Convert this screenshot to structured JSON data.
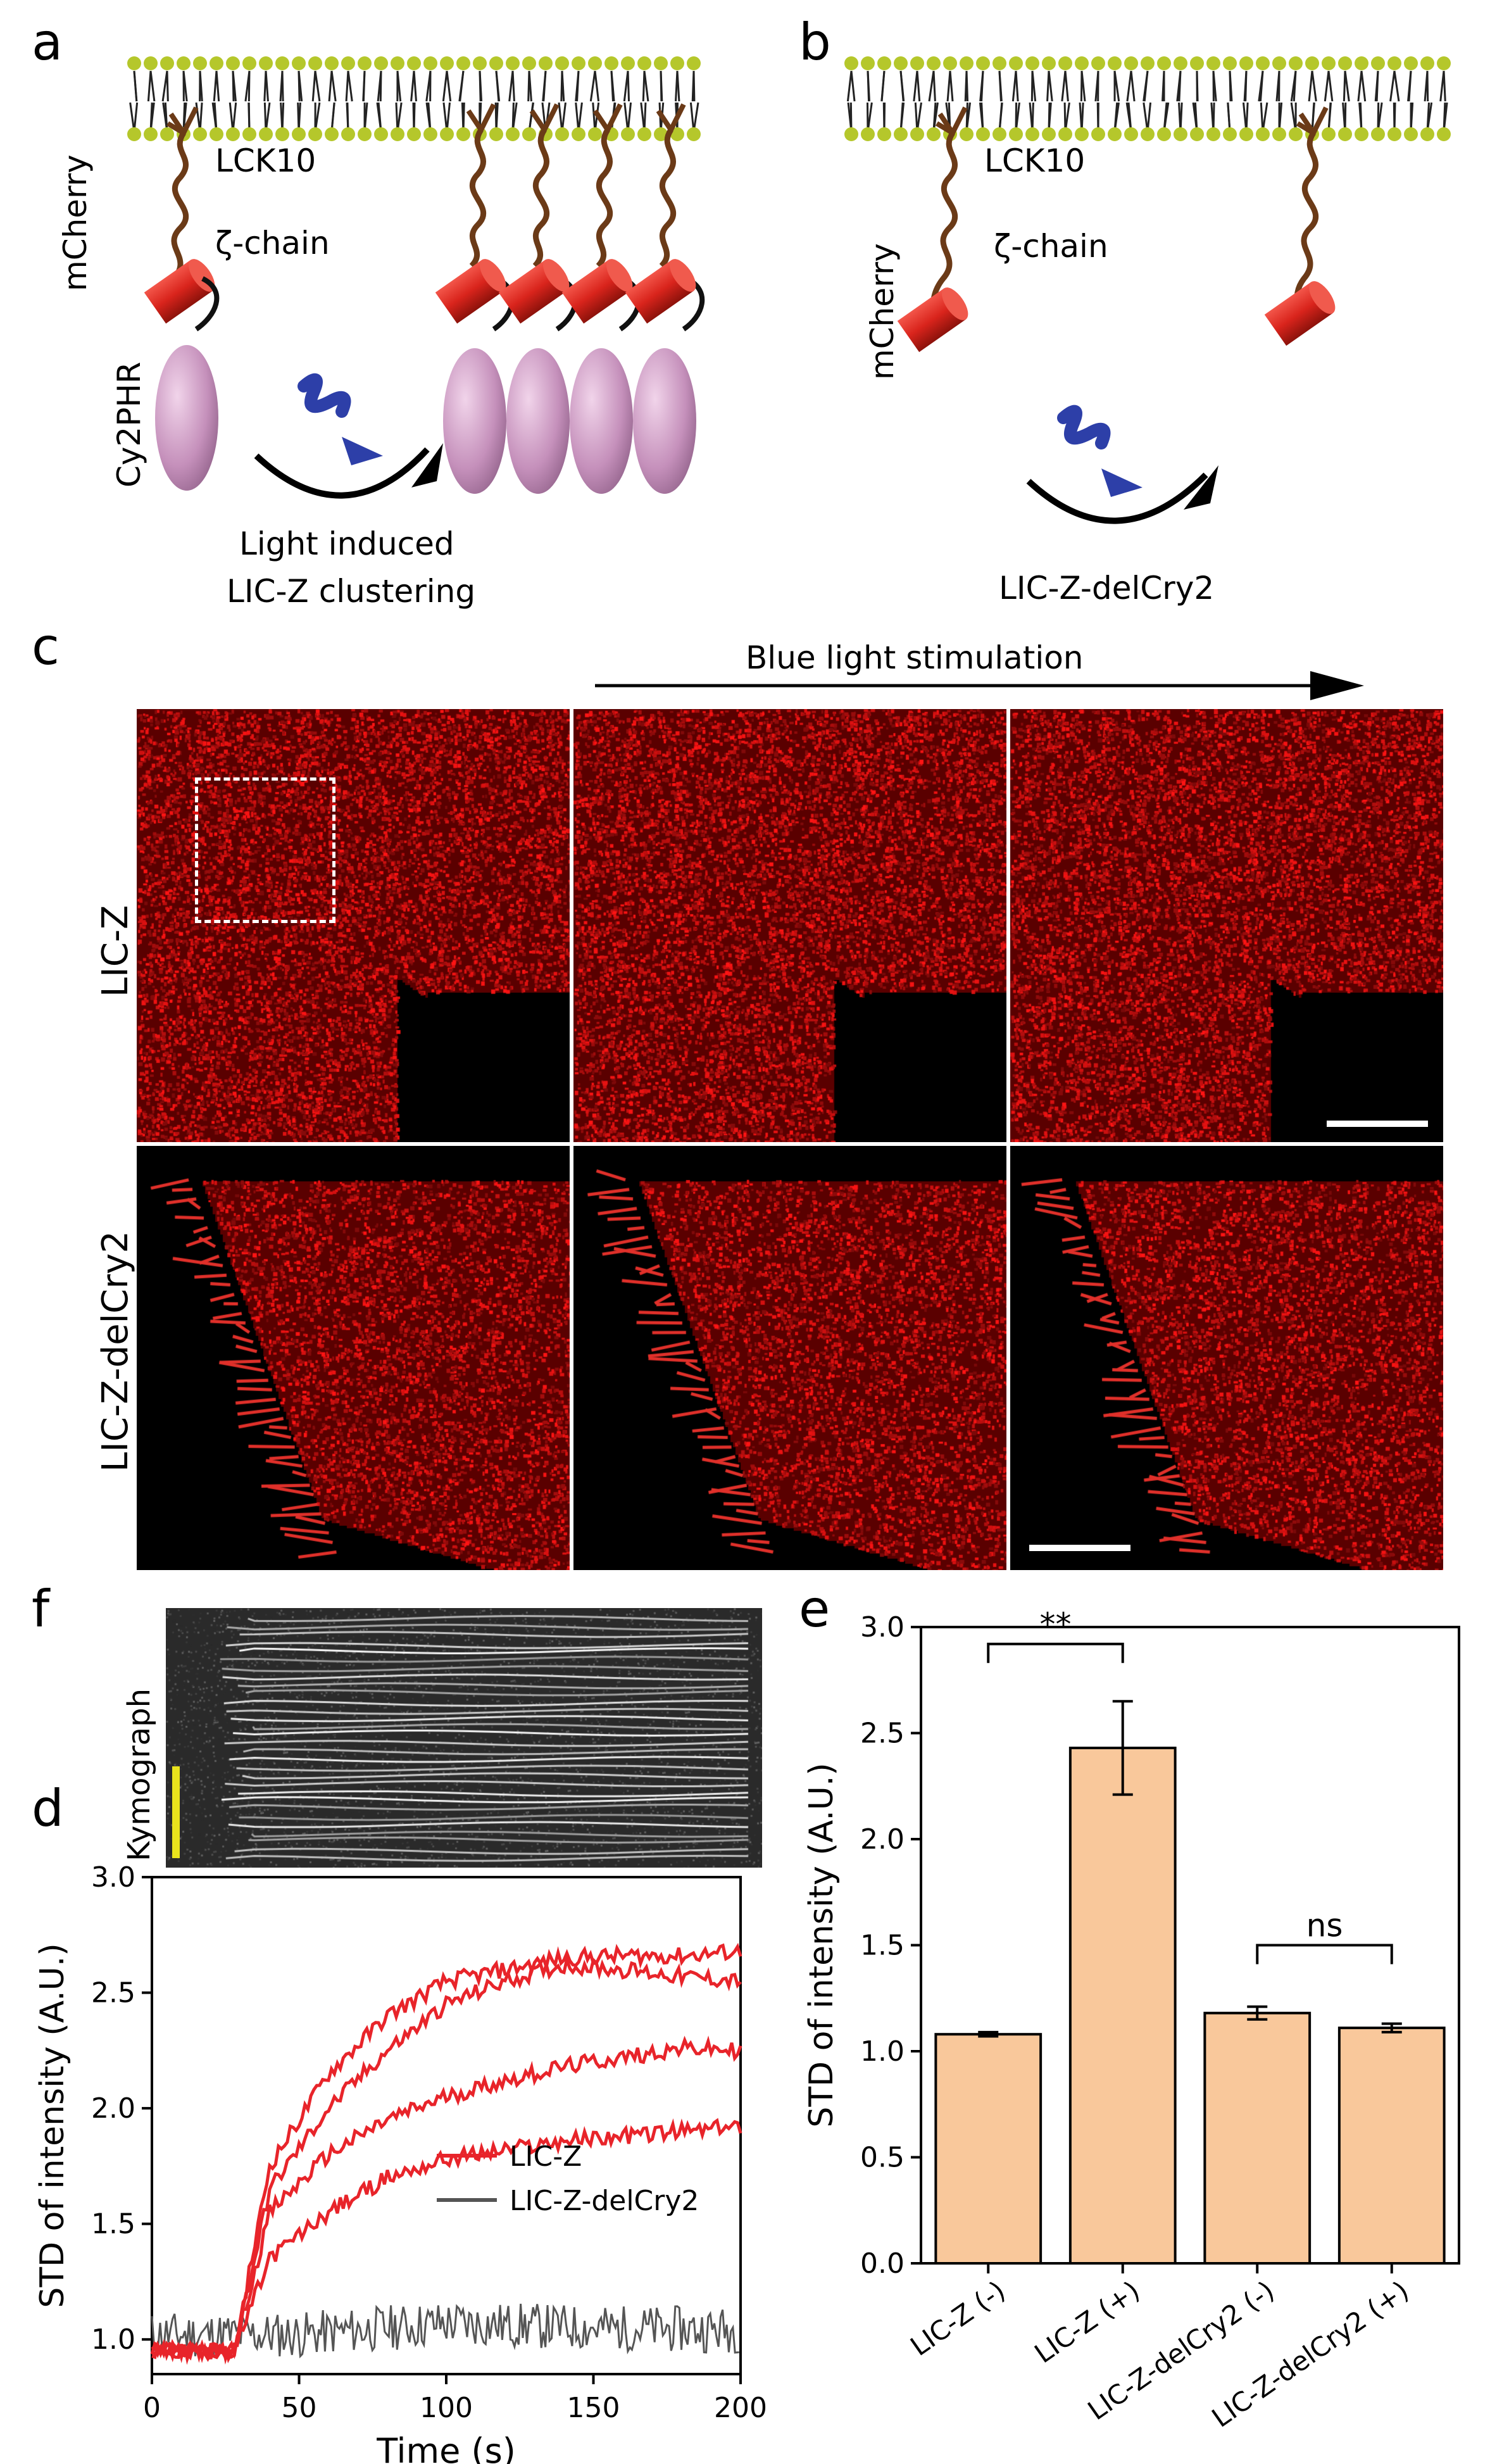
{
  "panels": {
    "a": {
      "letter": "a",
      "labels": {
        "lck10": "LCK10",
        "zeta_chain": "ζ-chain",
        "mcherry": "mCherry",
        "cy2phr": "Cy2PHR",
        "caption_line1": "Light induced",
        "caption_line2": "LIC-Z clustering"
      }
    },
    "b": {
      "letter": "b",
      "labels": {
        "lck10": "LCK10",
        "zeta_chain": "ζ-chain",
        "mcherry": "mCherry",
        "caption": "LIC-Z-delCry2"
      }
    },
    "c": {
      "letter": "c",
      "stimulation_label": "Blue light stimulation",
      "rows": [
        {
          "label": "LIC-Z"
        },
        {
          "label": "LIC-Z-delCry2"
        }
      ]
    },
    "f": {
      "letter": "f",
      "ylabel": "Kymograph"
    },
    "d": {
      "letter": "d"
    },
    "e": {
      "letter": "e"
    }
  },
  "colors": {
    "membrane_head": "#b5c72b",
    "chain": "#6b3a17",
    "mcherry": "#d9241c",
    "cry2": "#c590bb",
    "bar_fill": "#f9c89b",
    "lic_z_line": "#e8242a",
    "delcry2_line": "#555555",
    "scale_yellow": "#e9e31c",
    "light_icon": "#2d3fa8"
  },
  "chart_data": [
    {
      "id": "d",
      "type": "line",
      "xlabel": "Time (s)",
      "ylabel": "STD of intensity (A.U.)",
      "xlim": [
        0,
        200
      ],
      "ylim": [
        0.85,
        3.0
      ],
      "xticks": [
        "0",
        "50",
        "100",
        "150",
        "200"
      ],
      "yticks": [
        "1.0",
        "1.5",
        "2.0",
        "2.5",
        "3.0"
      ],
      "legend_position": "bottom-right",
      "series": [
        {
          "name": "LIC-Z",
          "color": "#e8242a",
          "traces": [
            {
              "x": [
                0,
                28,
                40,
                60,
                80,
                100,
                120,
                140,
                160,
                180,
                200
              ],
              "y": [
                0.95,
                0.95,
                1.75,
                2.15,
                2.4,
                2.55,
                2.6,
                2.65,
                2.66,
                2.66,
                2.68
              ]
            },
            {
              "x": [
                0,
                28,
                40,
                60,
                80,
                100,
                120,
                140,
                160,
                180,
                200
              ],
              "y": [
                0.95,
                0.95,
                1.65,
                2.0,
                2.25,
                2.45,
                2.55,
                2.62,
                2.6,
                2.57,
                2.55
              ]
            },
            {
              "x": [
                0,
                28,
                40,
                60,
                80,
                100,
                120,
                140,
                160,
                180,
                200
              ],
              "y": [
                0.95,
                0.95,
                1.55,
                1.8,
                1.95,
                2.05,
                2.12,
                2.18,
                2.22,
                2.26,
                2.25
              ]
            },
            {
              "x": [
                0,
                28,
                40,
                60,
                80,
                100,
                120,
                140,
                160,
                180,
                200
              ],
              "y": [
                0.95,
                0.95,
                1.35,
                1.55,
                1.7,
                1.78,
                1.82,
                1.86,
                1.88,
                1.9,
                1.92
              ]
            }
          ]
        },
        {
          "name": "LIC-Z-delCry2",
          "color": "#555555",
          "traces": [
            {
              "x": [
                0,
                50,
                100,
                150,
                200
              ],
              "y": [
                1.02,
                1.02,
                1.07,
                1.05,
                1.04
              ]
            }
          ]
        }
      ]
    },
    {
      "id": "e",
      "type": "bar",
      "ylabel": "STD of intensity (A.U.)",
      "ylim": [
        0,
        3.0
      ],
      "yticks": [
        "0.0",
        "0.5",
        "1.0",
        "1.5",
        "2.0",
        "2.5",
        "3.0"
      ],
      "categories": [
        "LIC-Z (-)",
        "LIC-Z (+)",
        "LIC-Z-delCry2 (-)",
        "LIC-Z-delCry2 (+)"
      ],
      "values": [
        1.08,
        2.43,
        1.18,
        1.11
      ],
      "errors": [
        0.01,
        0.22,
        0.03,
        0.02
      ],
      "annotations": [
        {
          "from": 0,
          "to": 1,
          "text": "**"
        },
        {
          "from": 2,
          "to": 3,
          "text": "ns"
        }
      ]
    }
  ]
}
